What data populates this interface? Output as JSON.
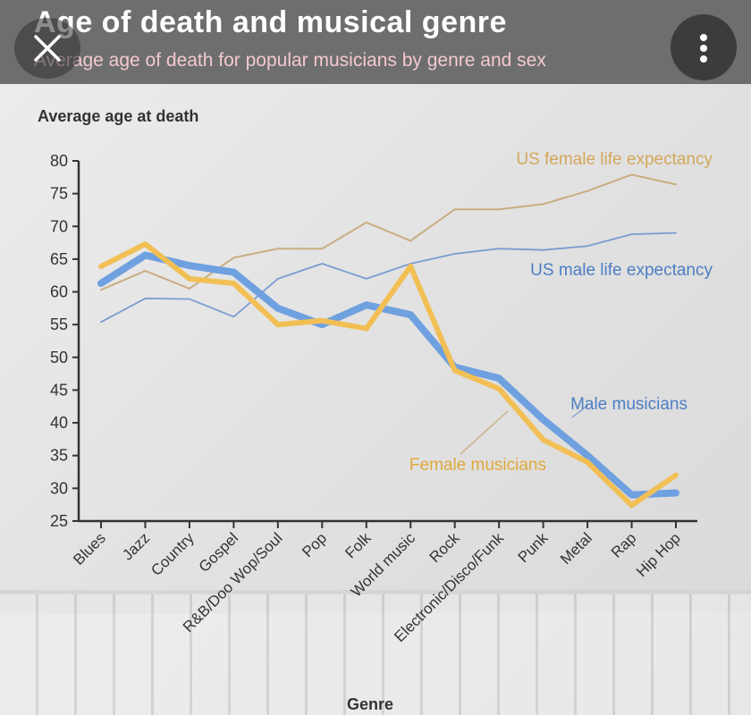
{
  "header": {
    "title": "Age of death and musical genre",
    "subtitle": "Average age of death for popular musicians by genre and sex"
  },
  "icons": {
    "close": "close-icon",
    "menu": "more-vertical-icon"
  },
  "colors": {
    "male_musicians": "#6fa0e0",
    "female_musicians": "#f2bf55",
    "us_female": "#c8ad82",
    "us_male": "#7a9cd0",
    "axis": "#333333"
  },
  "chart_data": {
    "type": "line",
    "title": "",
    "ylabel": "Average age at death",
    "xlabel": "Genre",
    "ylim": [
      25,
      80
    ],
    "yticks": [
      25,
      30,
      35,
      40,
      45,
      50,
      55,
      60,
      65,
      70,
      75,
      80
    ],
    "grid": false,
    "categories": [
      "Blues",
      "Jazz",
      "Country",
      "Gospel",
      "R&B/Doo Wop/Soul",
      "Pop",
      "Folk",
      "World music",
      "Rock",
      "Electronic/Disco/Funk",
      "Punk",
      "Metal",
      "Rap",
      "Hip Hop"
    ],
    "series": [
      {
        "name": "US female life expectancy",
        "key": "us_female",
        "values": [
          60.3,
          63.2,
          60.5,
          65.2,
          66.6,
          66.6,
          70.6,
          67.8,
          72.6,
          72.6,
          73.4,
          75.4,
          77.9,
          76.4
        ]
      },
      {
        "name": "US male life expectancy",
        "key": "us_male",
        "values": [
          55.4,
          59.0,
          58.9,
          56.2,
          62.0,
          64.3,
          62.0,
          64.3,
          65.8,
          66.6,
          66.4,
          67.0,
          68.8,
          69.0
        ]
      },
      {
        "name": "Male musicians",
        "key": "male_musicians",
        "values": [
          61.3,
          65.6,
          64.0,
          63.0,
          57.5,
          55.0,
          58.0,
          56.5,
          48.5,
          46.8,
          40.5,
          35.0,
          29.0,
          29.3
        ]
      },
      {
        "name": "Female musicians",
        "key": "female_musicians",
        "values": [
          63.9,
          67.3,
          62.0,
          61.3,
          55.0,
          55.6,
          54.4,
          63.9,
          48.0,
          45.2,
          37.4,
          34.0,
          27.4,
          32.0
        ]
      }
    ]
  }
}
